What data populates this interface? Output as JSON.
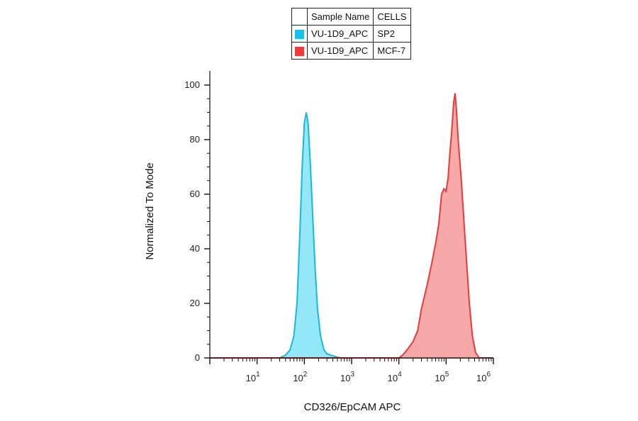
{
  "legend": {
    "headers": [
      "Sample Name",
      "CELLS"
    ],
    "rows": [
      {
        "sample": "VU-1D9_APC",
        "cells": "SP2",
        "color": "#17c2e8"
      },
      {
        "sample": "VU-1D9_APC",
        "cells": "MCF-7",
        "color": "#f23a3a"
      }
    ]
  },
  "chart_data": {
    "type": "area",
    "xlabel": "CD326/EpCAM APC",
    "ylabel": "Normalized To Mode",
    "x_scale": "log",
    "xlim": [
      1,
      1000000
    ],
    "ylim": [
      0,
      100
    ],
    "y_ticks": [
      "0",
      "20",
      "40",
      "60",
      "80",
      "100"
    ],
    "x_ticks": [
      {
        "base": "10",
        "exp": "1",
        "value": 10
      },
      {
        "base": "10",
        "exp": "2",
        "value": 100
      },
      {
        "base": "10",
        "exp": "3",
        "value": 1000
      },
      {
        "base": "10",
        "exp": "4",
        "value": 10000
      },
      {
        "base": "10",
        "exp": "5",
        "value": 100000
      },
      {
        "base": "10",
        "exp": "6",
        "value": 1000000
      }
    ],
    "grid": false,
    "series": [
      {
        "name": "SP2",
        "fill": "#8ee6f7",
        "stroke": "#17b8e0",
        "points": [
          [
            1,
            0
          ],
          [
            30,
            0
          ],
          [
            40,
            1
          ],
          [
            50,
            3
          ],
          [
            60,
            8
          ],
          [
            70,
            20
          ],
          [
            80,
            45
          ],
          [
            90,
            70
          ],
          [
            100,
            86
          ],
          [
            110,
            90
          ],
          [
            120,
            86
          ],
          [
            135,
            70
          ],
          [
            150,
            52
          ],
          [
            170,
            32
          ],
          [
            190,
            18
          ],
          [
            220,
            8
          ],
          [
            260,
            3
          ],
          [
            300,
            1.5
          ],
          [
            400,
            0.8
          ],
          [
            500,
            0.3
          ],
          [
            600,
            0
          ],
          [
            1000000,
            0
          ]
        ]
      },
      {
        "name": "MCF-7",
        "fill": "#f7a3a3",
        "stroke": "#e83a3a",
        "points": [
          [
            1,
            0
          ],
          [
            10000,
            0
          ],
          [
            12000,
            1
          ],
          [
            15000,
            3
          ],
          [
            20000,
            6
          ],
          [
            25000,
            10
          ],
          [
            30000,
            18
          ],
          [
            40000,
            27
          ],
          [
            50000,
            35
          ],
          [
            60000,
            42
          ],
          [
            70000,
            49
          ],
          [
            80000,
            60
          ],
          [
            90000,
            62
          ],
          [
            100000,
            61
          ],
          [
            110000,
            66
          ],
          [
            120000,
            75
          ],
          [
            130000,
            82
          ],
          [
            145000,
            94
          ],
          [
            155000,
            97
          ],
          [
            165000,
            91
          ],
          [
            180000,
            80
          ],
          [
            210000,
            65
          ],
          [
            260000,
            40
          ],
          [
            310000,
            20
          ],
          [
            360000,
            8
          ],
          [
            420000,
            2
          ],
          [
            500000,
            0
          ],
          [
            1000000,
            0
          ]
        ]
      }
    ]
  }
}
